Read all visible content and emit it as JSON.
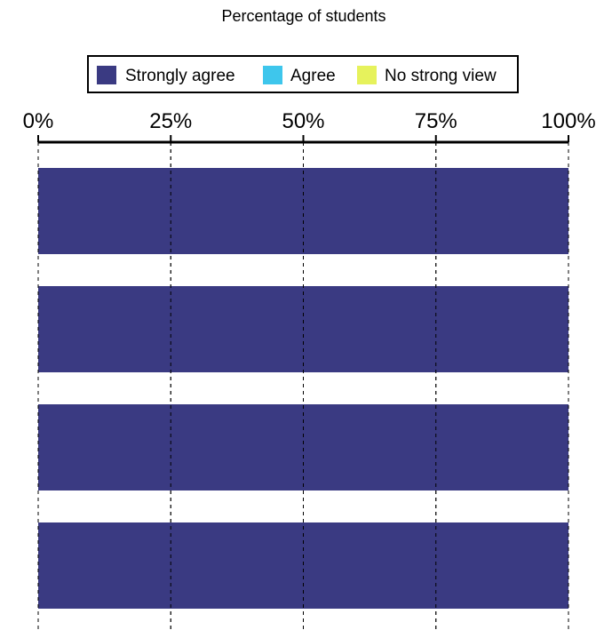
{
  "chart_data": {
    "type": "bar",
    "orientation": "horizontal",
    "stacked": true,
    "title": "Percentage of students",
    "xlim": [
      0,
      100
    ],
    "x_ticks": [
      0,
      25,
      50,
      75,
      100
    ],
    "x_tick_labels": [
      "0%",
      "25%",
      "50%",
      "75%",
      "100%"
    ],
    "axis_position": "top",
    "grid": "vertical dashed",
    "legend_placement": "top-center",
    "categories": [
      "",
      "",
      "",
      ""
    ],
    "series": [
      {
        "name": "Strongly agree",
        "color": "#3a3a82",
        "values": [
          100,
          100,
          100,
          100
        ]
      },
      {
        "name": "Agree",
        "color": "#3ec6ec",
        "values": [
          0,
          0,
          0,
          0
        ]
      },
      {
        "name": "No strong view",
        "color": "#e6f25c",
        "values": [
          0,
          0,
          0,
          0
        ]
      }
    ]
  }
}
